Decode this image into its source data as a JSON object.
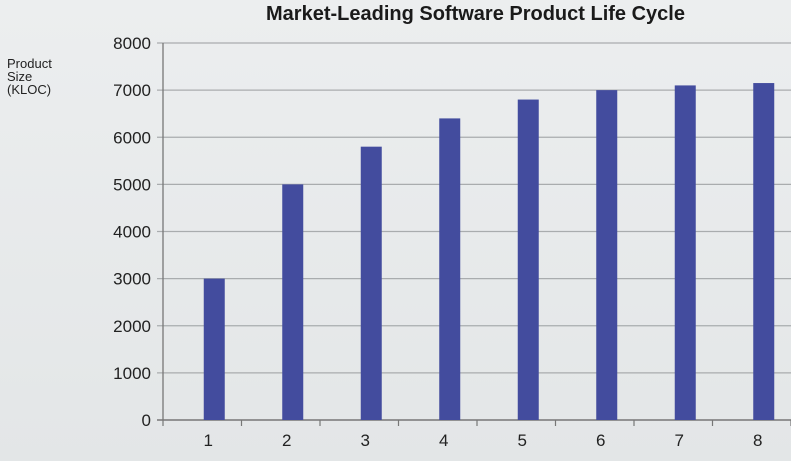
{
  "chart_data": {
    "type": "bar",
    "title": "Market-Leading Software Product Life Cycle",
    "xlabel": "",
    "ylabel": "Product\nSize\n(KLOC)",
    "categories": [
      "1",
      "2",
      "3",
      "4",
      "5",
      "6",
      "7",
      "8"
    ],
    "values": [
      3000,
      5000,
      5800,
      6400,
      6800,
      7000,
      7100,
      7150
    ],
    "ylim": [
      0,
      8000
    ],
    "yticks": [
      "0",
      "1000",
      "2000",
      "3000",
      "4000",
      "5000",
      "6000",
      "7000",
      "8000"
    ],
    "grid": true,
    "legend": "none",
    "bar_color": "#434c9e"
  }
}
